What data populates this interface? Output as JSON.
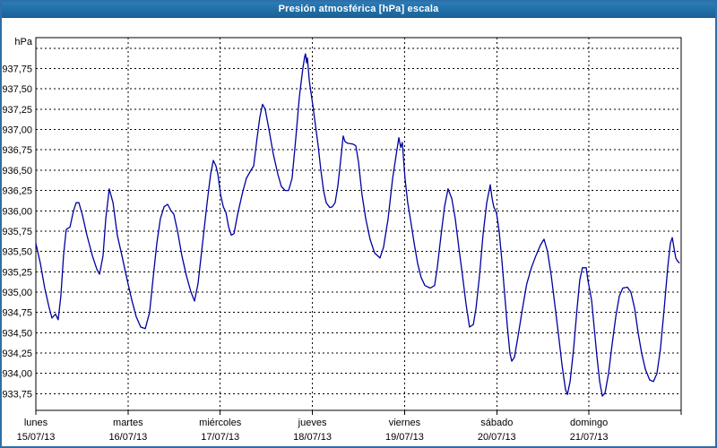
{
  "window": {
    "title": "Presión atmosférica [hPa] escala",
    "colors": {
      "titlebar_blue": "#1a6398",
      "titlebar_underline": "#7c3136",
      "outer_frame": "#2f6ea6",
      "plot_frame": "#000000",
      "line": "#0000a0",
      "background": "#ffffff",
      "text": "#000000"
    }
  },
  "chart_data": {
    "type": "line",
    "title": "Presión atmosférica [hPa] escala",
    "xlabel": "",
    "ylabel": "hPa",
    "grid": true,
    "legend": "none",
    "ylim": [
      933.545,
      938.13
    ],
    "y_tick_step": 0.25,
    "y_grid_extra": [
      938.0
    ],
    "y_ticks": [
      {
        "value": 937.75,
        "label": "937,75"
      },
      {
        "value": 937.5,
        "label": "937,50"
      },
      {
        "value": 937.25,
        "label": "937,25"
      },
      {
        "value": 937.0,
        "label": "937,00"
      },
      {
        "value": 936.75,
        "label": "936,75"
      },
      {
        "value": 936.5,
        "label": "936,50"
      },
      {
        "value": 936.25,
        "label": "936,25"
      },
      {
        "value": 936.0,
        "label": "936,00"
      },
      {
        "value": 935.75,
        "label": "935,75"
      },
      {
        "value": 935.5,
        "label": "935,50"
      },
      {
        "value": 935.25,
        "label": "935,25"
      },
      {
        "value": 935.0,
        "label": "935,00"
      },
      {
        "value": 934.75,
        "label": "934,75"
      },
      {
        "value": 934.5,
        "label": "934,50"
      },
      {
        "value": 934.25,
        "label": "934,25"
      },
      {
        "value": 934.0,
        "label": "934,00"
      },
      {
        "value": 933.75,
        "label": "933,75"
      }
    ],
    "x_total_hours": 168,
    "x_categories": [
      {
        "day": "lunes",
        "date": "15/07/13",
        "t": 0
      },
      {
        "day": "martes",
        "date": "16/07/13",
        "t": 24
      },
      {
        "day": "miércoles",
        "date": "17/07/13",
        "t": 48
      },
      {
        "day": "jueves",
        "date": "18/07/13",
        "t": 72
      },
      {
        "day": "viernes",
        "date": "19/07/13",
        "t": 96
      },
      {
        "day": "sábado",
        "date": "20/07/13",
        "t": 120
      },
      {
        "day": "domingo",
        "date": "21/07/13",
        "t": 144
      }
    ],
    "series": [
      {
        "name": "Presión atmosférica [hPa]",
        "color": "#0000a0",
        "points": [
          [
            0,
            935.6
          ],
          [
            1.2,
            935.35
          ],
          [
            2.3,
            935.05
          ],
          [
            3.5,
            934.8
          ],
          [
            4.2,
            934.68
          ],
          [
            5.1,
            934.73
          ],
          [
            5.8,
            934.66
          ],
          [
            6.5,
            934.95
          ],
          [
            7.2,
            935.45
          ],
          [
            7.9,
            935.77
          ],
          [
            8.9,
            935.8
          ],
          [
            9.8,
            936.0
          ],
          [
            10.5,
            936.1
          ],
          [
            11.2,
            936.1
          ],
          [
            12.1,
            935.95
          ],
          [
            13.3,
            935.7
          ],
          [
            14.7,
            935.45
          ],
          [
            15.9,
            935.28
          ],
          [
            16.6,
            935.22
          ],
          [
            17.5,
            935.45
          ],
          [
            18.2,
            935.9
          ],
          [
            19.1,
            936.27
          ],
          [
            20.1,
            936.1
          ],
          [
            21.2,
            935.7
          ],
          [
            22.4,
            935.45
          ],
          [
            23.3,
            935.25
          ],
          [
            24,
            935.1
          ],
          [
            25,
            934.9
          ],
          [
            26.1,
            934.7
          ],
          [
            27.3,
            934.57
          ],
          [
            28.5,
            934.55
          ],
          [
            29.6,
            934.75
          ],
          [
            30.6,
            935.2
          ],
          [
            31.5,
            935.6
          ],
          [
            32.4,
            935.9
          ],
          [
            33.4,
            936.05
          ],
          [
            34.3,
            936.08
          ],
          [
            35.2,
            936.0
          ],
          [
            35.9,
            935.96
          ],
          [
            36.9,
            935.75
          ],
          [
            38,
            935.45
          ],
          [
            39.2,
            935.2
          ],
          [
            40.4,
            935.0
          ],
          [
            41.3,
            934.89
          ],
          [
            42.2,
            935.1
          ],
          [
            43.4,
            935.6
          ],
          [
            44.6,
            936.1
          ],
          [
            45.5,
            936.45
          ],
          [
            46.2,
            936.62
          ],
          [
            46.9,
            936.55
          ],
          [
            47.4,
            936.45
          ],
          [
            48.1,
            936.2
          ],
          [
            48.8,
            936.05
          ],
          [
            49.5,
            935.98
          ],
          [
            50.2,
            935.8
          ],
          [
            50.9,
            935.7
          ],
          [
            51.6,
            935.72
          ],
          [
            52.5,
            935.95
          ],
          [
            53.7,
            936.2
          ],
          [
            54.8,
            936.4
          ],
          [
            56,
            936.5
          ],
          [
            56.7,
            936.55
          ],
          [
            57.6,
            936.9
          ],
          [
            58.3,
            937.15
          ],
          [
            59,
            937.31
          ],
          [
            59.7,
            937.25
          ],
          [
            60.7,
            937.0
          ],
          [
            61.8,
            936.7
          ],
          [
            63,
            936.45
          ],
          [
            63.9,
            936.3
          ],
          [
            64.9,
            936.25
          ],
          [
            65.8,
            936.25
          ],
          [
            66.7,
            936.4
          ],
          [
            67.7,
            936.9
          ],
          [
            68.6,
            937.4
          ],
          [
            69.5,
            937.75
          ],
          [
            70,
            937.9
          ],
          [
            70.2,
            937.93
          ],
          [
            70.5,
            937.82
          ],
          [
            70.7,
            937.88
          ],
          [
            71.2,
            937.6
          ],
          [
            72.1,
            937.3
          ],
          [
            72.8,
            937.05
          ],
          [
            73.5,
            936.8
          ],
          [
            74.2,
            936.5
          ],
          [
            74.9,
            936.25
          ],
          [
            75.6,
            936.1
          ],
          [
            76.5,
            936.04
          ],
          [
            77.2,
            936.05
          ],
          [
            77.9,
            936.1
          ],
          [
            78.6,
            936.3
          ],
          [
            79.3,
            936.6
          ],
          [
            80,
            936.92
          ],
          [
            80.5,
            936.85
          ],
          [
            81.2,
            936.83
          ],
          [
            82.6,
            936.82
          ],
          [
            83.3,
            936.8
          ],
          [
            84,
            936.6
          ],
          [
            84.9,
            936.2
          ],
          [
            85.9,
            935.9
          ],
          [
            87,
            935.65
          ],
          [
            88.2,
            935.48
          ],
          [
            89.6,
            935.42
          ],
          [
            90.5,
            935.55
          ],
          [
            91.7,
            935.9
          ],
          [
            92.9,
            936.4
          ],
          [
            94,
            936.75
          ],
          [
            94.5,
            936.9
          ],
          [
            95,
            936.78
          ],
          [
            95.4,
            936.84
          ],
          [
            96.1,
            936.4
          ],
          [
            96.8,
            936.1
          ],
          [
            97.5,
            935.9
          ],
          [
            98.5,
            935.6
          ],
          [
            99.4,
            935.35
          ],
          [
            100.3,
            935.18
          ],
          [
            101.3,
            935.08
          ],
          [
            102.7,
            935.05
          ],
          [
            103.8,
            935.08
          ],
          [
            104.5,
            935.3
          ],
          [
            105.5,
            935.7
          ],
          [
            106.4,
            936.05
          ],
          [
            107.3,
            936.27
          ],
          [
            108.3,
            936.15
          ],
          [
            109.2,
            935.9
          ],
          [
            110.1,
            935.55
          ],
          [
            111.1,
            935.2
          ],
          [
            112,
            934.85
          ],
          [
            112.9,
            934.57
          ],
          [
            113.9,
            934.6
          ],
          [
            114.6,
            934.8
          ],
          [
            115.5,
            935.2
          ],
          [
            116.4,
            935.7
          ],
          [
            117.4,
            936.1
          ],
          [
            118.3,
            936.32
          ],
          [
            118.8,
            936.15
          ],
          [
            119.2,
            936.05
          ],
          [
            119.9,
            935.98
          ],
          [
            120.6,
            935.75
          ],
          [
            121.3,
            935.4
          ],
          [
            122,
            935.0
          ],
          [
            122.7,
            934.6
          ],
          [
            123.4,
            934.25
          ],
          [
            123.9,
            934.15
          ],
          [
            124.6,
            934.2
          ],
          [
            125.5,
            934.45
          ],
          [
            126.7,
            934.8
          ],
          [
            127.8,
            935.1
          ],
          [
            129,
            935.3
          ],
          [
            130.2,
            935.45
          ],
          [
            131.4,
            935.58
          ],
          [
            132.3,
            935.65
          ],
          [
            133.2,
            935.5
          ],
          [
            134.2,
            935.2
          ],
          [
            135.1,
            934.85
          ],
          [
            136,
            934.5
          ],
          [
            137,
            934.1
          ],
          [
            137.9,
            933.8
          ],
          [
            138.4,
            933.74
          ],
          [
            139.1,
            933.9
          ],
          [
            140,
            934.3
          ],
          [
            140.9,
            934.8
          ],
          [
            141.6,
            935.15
          ],
          [
            142.3,
            935.3
          ],
          [
            143.3,
            935.3
          ],
          [
            143.7,
            935.15
          ],
          [
            144.7,
            934.9
          ],
          [
            145.4,
            934.55
          ],
          [
            146.1,
            934.2
          ],
          [
            146.8,
            933.9
          ],
          [
            147.5,
            933.72
          ],
          [
            148.2,
            933.76
          ],
          [
            149.1,
            934.0
          ],
          [
            150,
            934.35
          ],
          [
            151,
            934.7
          ],
          [
            151.9,
            934.95
          ],
          [
            152.8,
            935.05
          ],
          [
            154,
            935.06
          ],
          [
            154.9,
            935.0
          ],
          [
            155.9,
            934.8
          ],
          [
            156.8,
            934.5
          ],
          [
            157.7,
            934.25
          ],
          [
            158.7,
            934.05
          ],
          [
            159.8,
            933.92
          ],
          [
            160.8,
            933.9
          ],
          [
            161.7,
            934.0
          ],
          [
            162.6,
            934.3
          ],
          [
            163.6,
            934.8
          ],
          [
            164.5,
            935.3
          ],
          [
            165.2,
            935.6
          ],
          [
            165.7,
            935.67
          ],
          [
            166.1,
            935.55
          ],
          [
            166.6,
            935.42
          ],
          [
            167.1,
            935.38
          ],
          [
            167.5,
            935.36
          ]
        ]
      }
    ]
  }
}
